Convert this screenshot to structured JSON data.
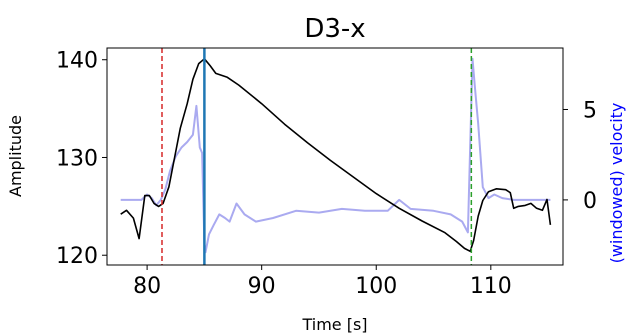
{
  "chart_data": {
    "type": "line",
    "title": "D3-x",
    "xlabel": "Time [s]",
    "ylabel": "Amplitude",
    "y2label": "(windowed) velocity",
    "xlim": [
      76.5,
      116.3
    ],
    "ylim": [
      119,
      141.2
    ],
    "y2lim": [
      -3.6,
      8.4
    ],
    "xticks": [
      80,
      90,
      100,
      110
    ],
    "yticks": [
      120,
      130,
      140
    ],
    "y2ticks": [
      0,
      5
    ],
    "grid": false,
    "legend": "none",
    "colors": {
      "amplitude": "#000000",
      "velocity": "#aaaaf0",
      "y2label": "#0000ff",
      "marker_red": "#d62728",
      "marker_blue": "#1f77b4",
      "marker_green": "#2ca02c"
    },
    "vlines": [
      {
        "x": 81.3,
        "style": "dashed",
        "color": "#d62728"
      },
      {
        "x": 85.0,
        "style": "solid",
        "color": "#1f77b4"
      },
      {
        "x": 108.3,
        "style": "dashed",
        "color": "#2ca02c"
      }
    ],
    "series": [
      {
        "axis": "left",
        "x": [
          77.7,
          78.2,
          78.8,
          79.3,
          79.8,
          80.2,
          80.6,
          81.0,
          81.4,
          81.9,
          82.4,
          82.9,
          83.5,
          84.0,
          84.5,
          85.0,
          85.5,
          86.0,
          87.0,
          88.0,
          90.0,
          92.0,
          94.0,
          96.0,
          98.0,
          100.0,
          102.0,
          104.0,
          106.0,
          107.0,
          107.7,
          108.2,
          108.5,
          108.9,
          109.3,
          109.8,
          110.5,
          111.3,
          111.7,
          112.0,
          112.4,
          113.0,
          113.5,
          114.0,
          114.5,
          114.9,
          115.2
        ],
        "y": [
          124.2,
          124.6,
          123.8,
          121.7,
          126.1,
          126.1,
          125.3,
          125.0,
          125.3,
          127.0,
          130.0,
          133.0,
          135.5,
          138.0,
          139.6,
          140.1,
          139.4,
          138.6,
          138.2,
          137.4,
          135.5,
          133.4,
          131.5,
          129.7,
          128.0,
          126.3,
          124.8,
          123.5,
          122.3,
          121.4,
          120.7,
          120.4,
          121.5,
          124.0,
          125.6,
          126.5,
          126.8,
          126.7,
          126.4,
          124.8,
          125.0,
          125.1,
          125.3,
          124.8,
          124.6,
          125.7,
          123.1
        ]
      },
      {
        "axis": "right",
        "x": [
          77.7,
          79.5,
          80.0,
          80.4,
          80.8,
          81.2,
          81.6,
          82.0,
          82.5,
          83.0,
          83.5,
          84.0,
          84.3,
          84.6,
          84.8,
          85.0,
          85.1,
          85.4,
          85.8,
          86.3,
          86.8,
          87.2,
          87.8,
          88.5,
          89.5,
          91.0,
          93.0,
          95.0,
          97.0,
          99.0,
          101.0,
          102.0,
          103.0,
          105.0,
          106.5,
          107.5,
          108.0,
          108.4,
          108.6,
          108.9,
          109.3,
          109.8,
          110.3,
          111.0,
          112.0,
          113.0,
          114.0,
          115.2
        ],
        "y": [
          0.0,
          0.0,
          0.3,
          0.1,
          -0.3,
          0.0,
          0.6,
          1.6,
          2.4,
          2.9,
          3.2,
          3.6,
          5.2,
          2.9,
          2.6,
          -2.4,
          -2.9,
          -1.9,
          -1.4,
          -0.8,
          -1.0,
          -1.2,
          -0.2,
          -0.8,
          -1.2,
          -1.0,
          -0.6,
          -0.7,
          -0.5,
          -0.6,
          -0.6,
          0.0,
          -0.5,
          -0.6,
          -0.8,
          -1.2,
          -1.8,
          7.8,
          6.3,
          4.2,
          0.7,
          0.1,
          0.3,
          0.1,
          0.0,
          0.0,
          0.0,
          0.0
        ]
      }
    ]
  }
}
